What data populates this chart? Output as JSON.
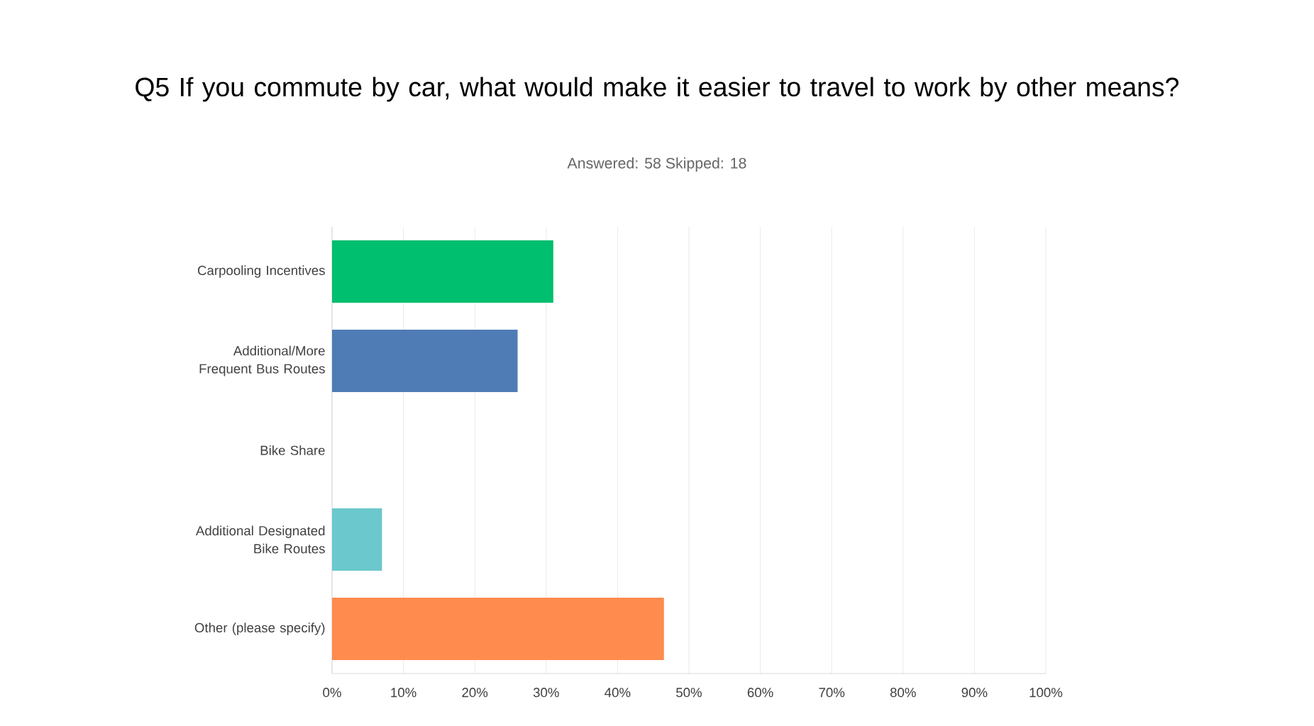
{
  "chart_data": {
    "type": "bar",
    "orientation": "horizontal",
    "title": "Q5 If you commute by car, what would make it easier to travel to work by other means?",
    "subtitle": "Answered: 58    Skipped: 18",
    "categories": [
      "Carpooling Incentives",
      "Additional/More Frequent Bus Routes",
      "Bike Share",
      "Additional Designated Bike Routes",
      "Other (please specify)"
    ],
    "values": [
      31,
      26,
      0,
      7,
      46.5
    ],
    "colors": [
      "#00bf6f",
      "#507cb6",
      "#6bc8cd",
      "#6bc8cd",
      "#ff8b4f"
    ],
    "xlim": [
      0,
      100
    ],
    "xticks": [
      {
        "value": 0,
        "label": "0%"
      },
      {
        "value": 10,
        "label": "10%"
      },
      {
        "value": 20,
        "label": "20%"
      },
      {
        "value": 30,
        "label": "30%"
      },
      {
        "value": 40,
        "label": "40%"
      },
      {
        "value": 50,
        "label": "50%"
      },
      {
        "value": 60,
        "label": "60%"
      },
      {
        "value": 70,
        "label": "70%"
      },
      {
        "value": 80,
        "label": "80%"
      },
      {
        "value": 90,
        "label": "90%"
      },
      {
        "value": 100,
        "label": "100%"
      }
    ],
    "grid": "x"
  }
}
